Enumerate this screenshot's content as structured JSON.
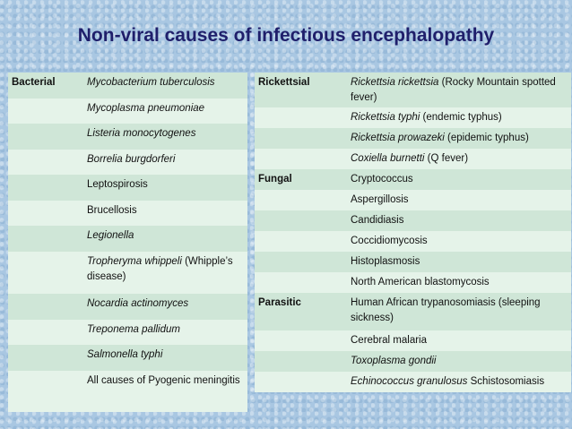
{
  "title": "Non-viral causes of infectious encephalopathy",
  "left_table": {
    "rows": [
      {
        "category": "Bacterial",
        "organism": "Mycobacterium tuberculosis",
        "italic": true,
        "extra": ""
      },
      {
        "category": "",
        "organism": "Mycoplasma pneumoniae",
        "italic": true,
        "extra": ""
      },
      {
        "category": "",
        "organism": "Listeria monocytogenes",
        "italic": true,
        "extra": ""
      },
      {
        "category": "",
        "organism": "Borrelia burgdorferi",
        "italic": true,
        "extra": ""
      },
      {
        "category": "",
        "organism": "Leptospirosis",
        "italic": false,
        "extra": ""
      },
      {
        "category": "",
        "organism": "Brucellosis",
        "italic": false,
        "extra": ""
      },
      {
        "category": "",
        "organism": "Legionella",
        "italic": true,
        "extra": ""
      },
      {
        "category": "",
        "organism": "Tropheryma whippeli",
        "italic": true,
        "extra": "(Whipple’s disease)"
      },
      {
        "category": "",
        "organism": "Nocardia actinomyces",
        "italic": true,
        "extra": ""
      },
      {
        "category": "",
        "organism": "Treponema pallidum",
        "italic": true,
        "extra": ""
      },
      {
        "category": "",
        "organism": "Salmonella typhi",
        "italic": true,
        "extra": ""
      },
      {
        "category": "",
        "organism": "All causes of Pyogenic meningitis",
        "italic": false,
        "extra": ""
      }
    ]
  },
  "right_table": {
    "rows": [
      {
        "category": "Rickettsial",
        "organism": "Rickettsia rickettsia",
        "italic": true,
        "extra": "(Rocky Mountain spotted fever)"
      },
      {
        "category": "",
        "organism": "Rickettsia typhi",
        "italic": true,
        "extra": "(endemic typhus)"
      },
      {
        "category": "",
        "organism": "Rickettsia prowazeki",
        "italic": true,
        "extra": "(epidemic typhus)"
      },
      {
        "category": "",
        "organism": "Coxiella burnetti",
        "italic": true,
        "extra": "(Q fever)"
      },
      {
        "category": "Fungal",
        "organism": "Cryptococcus",
        "italic": false,
        "extra": ""
      },
      {
        "category": "",
        "organism": "Aspergillosis",
        "italic": false,
        "extra": ""
      },
      {
        "category": "",
        "organism": "Candidiasis",
        "italic": false,
        "extra": ""
      },
      {
        "category": "",
        "organism": "Coccidiomycosis",
        "italic": false,
        "extra": ""
      },
      {
        "category": "",
        "organism": "Histoplasmosis",
        "italic": false,
        "extra": ""
      },
      {
        "category": "",
        "organism": "North American blastomycosis",
        "italic": false,
        "extra": ""
      },
      {
        "category": "Parasitic",
        "organism": "Human African trypanosomiasis (sleeping sickness)",
        "italic": false,
        "extra": ""
      },
      {
        "category": "",
        "organism": "Cerebral malaria",
        "italic": false,
        "extra": ""
      },
      {
        "category": "",
        "organism": "Toxoplasma gondii",
        "italic": true,
        "extra": ""
      },
      {
        "category": "",
        "organism": "Echinococcus granulosus",
        "italic": true,
        "extra": "Schistosomiasis"
      }
    ]
  }
}
